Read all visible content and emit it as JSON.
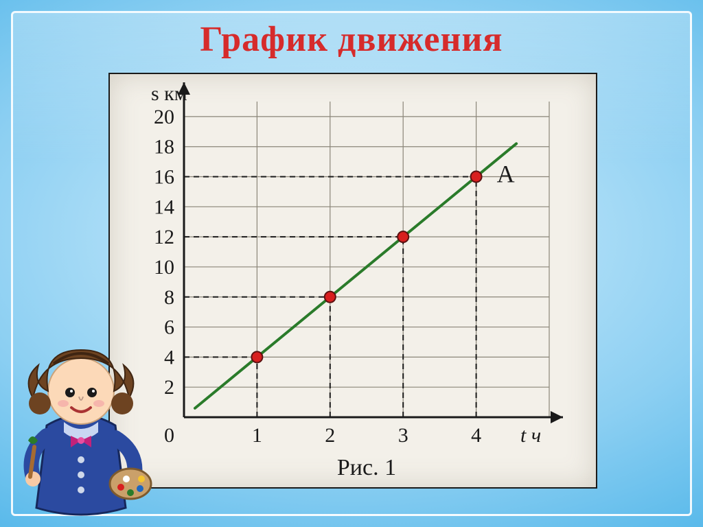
{
  "title": "График движения",
  "chart": {
    "type": "line",
    "caption": "Рис. 1",
    "x_axis": {
      "label": "t ч",
      "ticks": [
        0,
        1,
        2,
        3,
        4
      ],
      "extra_grid": [
        5
      ],
      "lim": [
        0,
        5
      ]
    },
    "y_axis": {
      "label": "s км",
      "ticks": [
        2,
        4,
        6,
        8,
        10,
        12,
        14,
        16,
        18,
        20
      ],
      "lim": [
        0,
        21
      ]
    },
    "series_label": "A",
    "line_color": "#2a7b2a",
    "line_width": 4,
    "point_fill": "#d81f1f",
    "point_stroke": "#5b1111",
    "point_radius": 8,
    "grid_color": "#8a8578",
    "axis_color": "#1a1a1a",
    "background": "#f3f0e9",
    "tick_font_size": 30,
    "axis_label_font_size": 30,
    "caption_font_size": 34,
    "series_label_font_size": 36,
    "dash_pattern": "8 6",
    "data_points": [
      {
        "t": 1,
        "s": 4
      },
      {
        "t": 2,
        "s": 8
      },
      {
        "t": 3,
        "s": 12
      },
      {
        "t": 4,
        "s": 16
      }
    ],
    "line_extent": {
      "t_start": 0.15,
      "s_start": 0.6,
      "t_end": 4.55,
      "s_end": 18.2
    }
  },
  "colors": {
    "title": "#d62b2b",
    "frame": "#ffffff",
    "bg_center": "#c9e9fa",
    "bg_edge": "#2795d6"
  }
}
